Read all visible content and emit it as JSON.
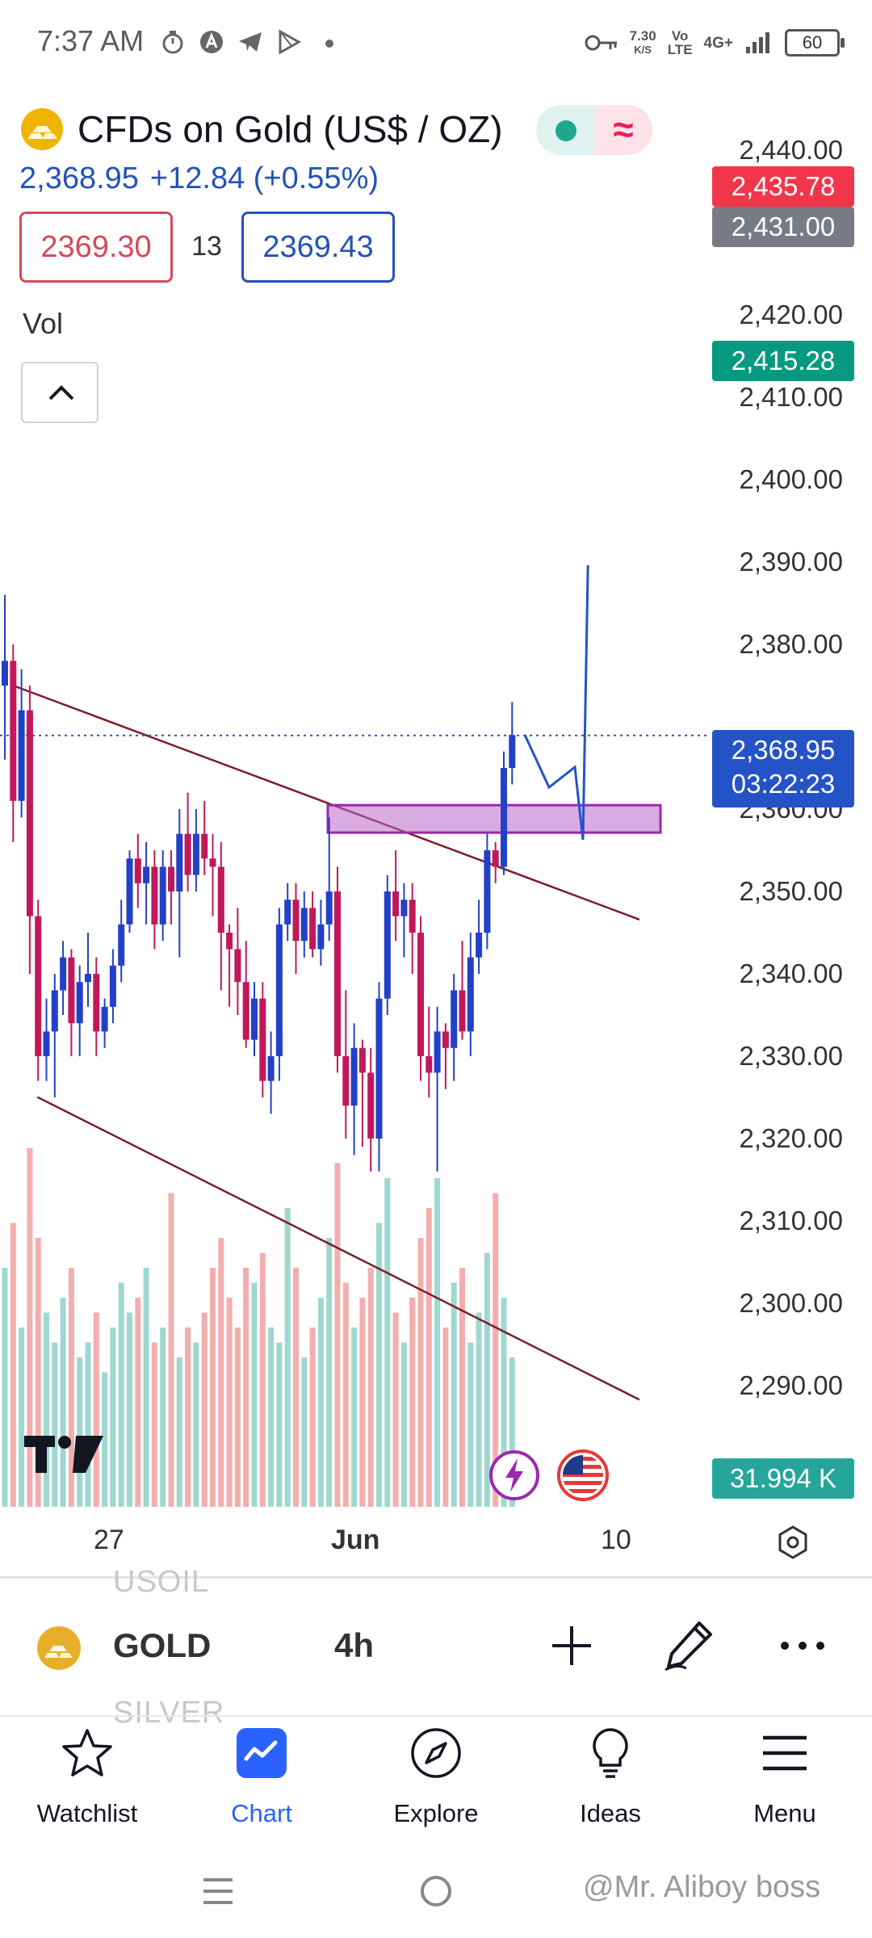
{
  "status_bar": {
    "time": "7:37 AM",
    "speed_value": "7.30",
    "speed_unit": "K/S",
    "volte_top": "Vo",
    "volte_bottom": "LTE",
    "network": "4G+",
    "battery": "60",
    "icons": [
      "timer-icon",
      "assistant-icon",
      "telegram-icon",
      "play-icon",
      "dot-icon",
      "key-icon",
      "signal-icon"
    ]
  },
  "header": {
    "symbol_title": "CFDs on Gold (US$ / OZ)",
    "last_price": "2,368.95",
    "change": "+12.84 (+0.55%)",
    "sell_price": "2369.30",
    "spread": "13",
    "buy_price": "2369.43",
    "vol_label": "Vol",
    "colors": {
      "sell": "#d5495a",
      "buy": "#2453b8",
      "market_open": "#1fa88f",
      "accent": "#2962ff"
    }
  },
  "price_axis": {
    "labels": [
      "2,440.00",
      "2,420.00",
      "2,410.00",
      "2,400.00",
      "2,390.00",
      "2,380.00",
      "2,360.00",
      "2,350.00",
      "2,340.00",
      "2,330.00",
      "2,320.00",
      "2,310.00",
      "2,300.00",
      "2,290.00"
    ],
    "tags": {
      "red": "2,435.78",
      "gray": "2,431.00",
      "green": "2,415.28",
      "last_price": "2,368.95",
      "countdown": "03:22:23",
      "volume": "31.994 K"
    }
  },
  "time_axis": {
    "labels": [
      "27",
      "Jun",
      "10"
    ]
  },
  "chart_data": {
    "type": "candlestick",
    "timeframe": "4h",
    "y_range": [
      2283,
      2443
    ],
    "last_price": 2368.95,
    "candles": [
      [
        2375,
        2386,
        2366,
        2378
      ],
      [
        2378,
        2380,
        2356,
        2361
      ],
      [
        2361,
        2377,
        2359,
        2372
      ],
      [
        2372,
        2375,
        2340,
        2347
      ],
      [
        2347,
        2349,
        2327,
        2330
      ],
      [
        2330,
        2337,
        2327,
        2333
      ],
      [
        2333,
        2340,
        2325,
        2338
      ],
      [
        2338,
        2344,
        2335,
        2342
      ],
      [
        2342,
        2343,
        2330,
        2334
      ],
      [
        2334,
        2341,
        2330,
        2339
      ],
      [
        2339,
        2345,
        2336,
        2340
      ],
      [
        2340,
        2342,
        2330,
        2333
      ],
      [
        2333,
        2337,
        2331,
        2336
      ],
      [
        2336,
        2343,
        2334,
        2341
      ],
      [
        2341,
        2349,
        2339,
        2346
      ],
      [
        2346,
        2355,
        2345,
        2354
      ],
      [
        2354,
        2357,
        2348,
        2351
      ],
      [
        2351,
        2356,
        2346,
        2353
      ],
      [
        2353,
        2355,
        2343,
        2346
      ],
      [
        2346,
        2355,
        2344,
        2353
      ],
      [
        2353,
        2355,
        2346,
        2350
      ],
      [
        2350,
        2360,
        2342,
        2357
      ],
      [
        2357,
        2362,
        2350,
        2352
      ],
      [
        2352,
        2360,
        2350,
        2357
      ],
      [
        2357,
        2361,
        2352,
        2354
      ],
      [
        2354,
        2357,
        2347,
        2353
      ],
      [
        2353,
        2356,
        2338,
        2345
      ],
      [
        2345,
        2346,
        2336,
        2343
      ],
      [
        2343,
        2348,
        2335,
        2339
      ],
      [
        2339,
        2344,
        2331,
        2332
      ],
      [
        2332,
        2339,
        2330,
        2337
      ],
      [
        2337,
        2339,
        2325,
        2327
      ],
      [
        2327,
        2333,
        2323,
        2330
      ],
      [
        2330,
        2348,
        2327,
        2346
      ],
      [
        2346,
        2351,
        2344,
        2349
      ],
      [
        2349,
        2351,
        2340,
        2344
      ],
      [
        2344,
        2350,
        2342,
        2348
      ],
      [
        2348,
        2350,
        2342,
        2343
      ],
      [
        2343,
        2349,
        2341,
        2346
      ],
      [
        2346,
        2359,
        2344,
        2350
      ],
      [
        2350,
        2353,
        2328,
        2330
      ],
      [
        2330,
        2338,
        2320,
        2324
      ],
      [
        2324,
        2334,
        2318,
        2331
      ],
      [
        2331,
        2332,
        2319,
        2328
      ],
      [
        2328,
        2331,
        2316,
        2320
      ],
      [
        2320,
        2339,
        2316,
        2337
      ],
      [
        2337,
        2352,
        2335,
        2350
      ],
      [
        2350,
        2355,
        2344,
        2347
      ],
      [
        2347,
        2351,
        2342,
        2349
      ],
      [
        2349,
        2351,
        2340,
        2345
      ],
      [
        2345,
        2347,
        2327,
        2330
      ],
      [
        2330,
        2336,
        2325,
        2328
      ],
      [
        2328,
        2336,
        2316,
        2333
      ],
      [
        2333,
        2334,
        2326,
        2331
      ],
      [
        2331,
        2340,
        2327,
        2338
      ],
      [
        2338,
        2344,
        2332,
        2333
      ],
      [
        2333,
        2345,
        2330,
        2342
      ],
      [
        2342,
        2349,
        2340,
        2345
      ],
      [
        2345,
        2357,
        2343,
        2355
      ],
      [
        2355,
        2356,
        2351,
        2353
      ],
      [
        2353,
        2367,
        2352,
        2365
      ],
      [
        2365,
        2373,
        2363,
        2369
      ]
    ],
    "volumes": [
      1.6,
      1.9,
      1.2,
      2.4,
      1.8,
      1.3,
      1.1,
      1.4,
      1.6,
      1.0,
      1.1,
      1.3,
      0.9,
      1.2,
      1.5,
      1.3,
      1.4,
      1.6,
      1.1,
      1.2,
      2.1,
      1.0,
      1.2,
      1.1,
      1.3,
      1.6,
      1.8,
      1.4,
      1.2,
      1.6,
      1.5,
      1.7,
      1.2,
      1.1,
      2.0,
      1.6,
      1.0,
      1.2,
      1.4,
      1.8,
      2.3,
      1.5,
      1.2,
      1.4,
      1.6,
      1.9,
      2.2,
      1.3,
      1.1,
      1.4,
      1.8,
      2.0,
      2.2,
      1.2,
      1.5,
      1.6,
      1.1,
      1.3,
      1.7,
      2.1,
      1.4,
      1.0
    ],
    "annotations": {
      "upper_trendline": {
        "from": [
          1,
          2375
        ],
        "to": [
          60,
          2351
        ]
      },
      "lower_trendline": {
        "from": [
          1,
          2327
        ],
        "to": [
          60,
          2303
        ]
      },
      "zone": {
        "from_x": 33,
        "to_x": 63,
        "low": 2356.3,
        "high": 2359.5
      },
      "projection": [
        [
          62,
          2371
        ],
        [
          64,
          2363
        ],
        [
          65.5,
          2366
        ],
        [
          67.5,
          2358
        ],
        [
          69,
          2400
        ]
      ]
    }
  },
  "symbol_bar": {
    "ghost_above": "USOIL",
    "symbol": "GOLD",
    "ghost_below": "SILVER",
    "interval": "4h"
  },
  "bottom_nav": {
    "items": [
      {
        "label": "Watchlist",
        "icon": "star-icon"
      },
      {
        "label": "Chart",
        "icon": "chart-icon"
      },
      {
        "label": "Explore",
        "icon": "compass-icon"
      },
      {
        "label": "Ideas",
        "icon": "lightbulb-icon"
      },
      {
        "label": "Menu",
        "icon": "hamburger-icon"
      }
    ]
  },
  "watermark": "@Mr. Aliboy boss"
}
